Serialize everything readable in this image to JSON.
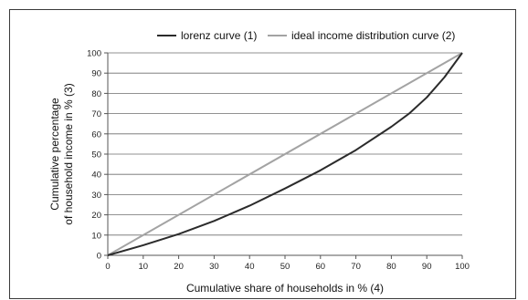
{
  "chart_data": {
    "type": "line",
    "xlabel": "Cumulative share of households in % (4)",
    "ylabel_lines": [
      "Cumulative percentage",
      "of household income in % (3)"
    ],
    "xlim": [
      0,
      100
    ],
    "ylim": [
      0,
      100
    ],
    "x_ticks": [
      "0",
      "10",
      "20",
      "30",
      "40",
      "50",
      "60",
      "70",
      "80",
      "90",
      "100"
    ],
    "y_ticks": [
      "0",
      "10",
      "20",
      "30",
      "40",
      "50",
      "60",
      "70",
      "80",
      "90",
      "100"
    ],
    "grid": "horizontal",
    "legend_position": "top",
    "series": [
      {
        "name": "lorenz curve (1)",
        "color": "#2b2b2b",
        "x": [
          0,
          10,
          20,
          30,
          40,
          50,
          60,
          70,
          80,
          85,
          90,
          95,
          100
        ],
        "y": [
          0,
          5,
          10.5,
          17,
          24.5,
          33,
          42,
          52,
          63.5,
          70,
          78,
          88,
          100
        ]
      },
      {
        "name": "ideal income distribution curve (2)",
        "color": "#a3a3a3",
        "x": [
          0,
          100
        ],
        "y": [
          0,
          100
        ]
      }
    ]
  }
}
